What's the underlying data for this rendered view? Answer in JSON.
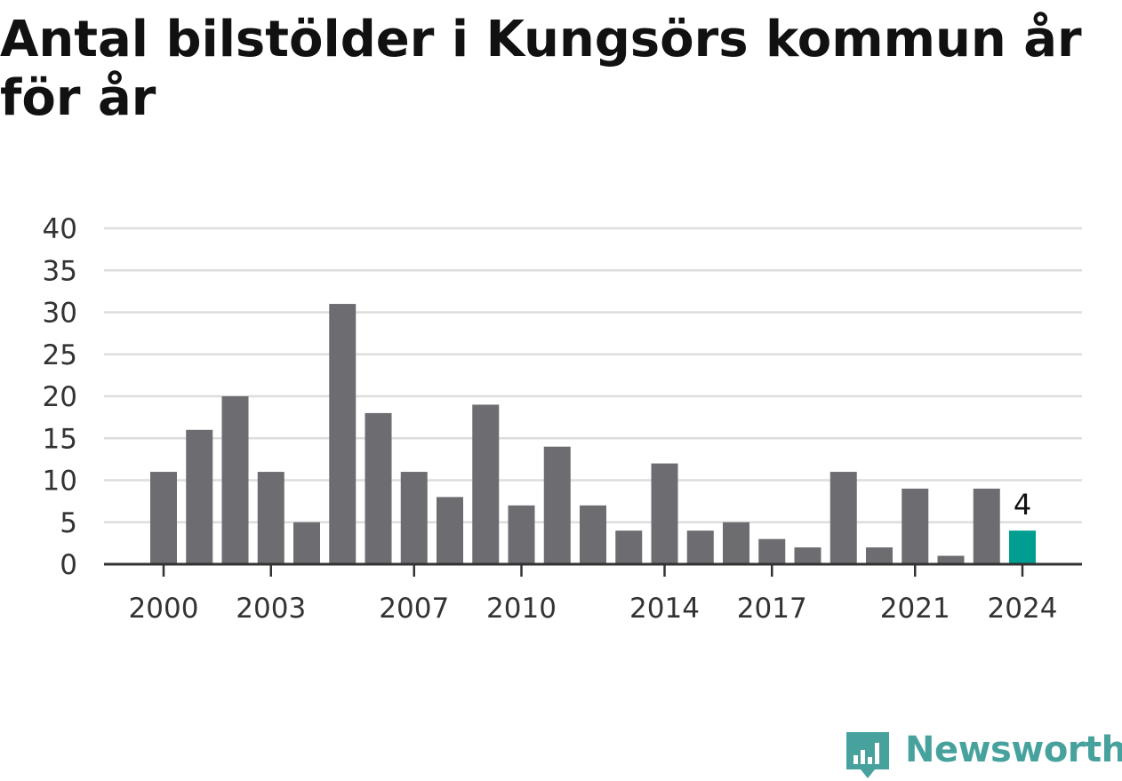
{
  "title": "Antal bilstölder i Kungsörs kommun år för år",
  "brand": {
    "name": "Newsworthy",
    "icon": "bar-chart-speech-bubble-icon",
    "color": "#47a29e"
  },
  "colors": {
    "bar": "#6d6c71",
    "highlight": "#009e91",
    "grid": "#dddddd",
    "axis": "#333333",
    "text": "#333333"
  },
  "chart_data": {
    "type": "bar",
    "categories": [
      "2000",
      "2001",
      "2002",
      "2003",
      "2004",
      "2005",
      "2006",
      "2007",
      "2008",
      "2009",
      "2010",
      "2011",
      "2012",
      "2013",
      "2014",
      "2015",
      "2016",
      "2017",
      "2018",
      "2019",
      "2020",
      "2021",
      "2022",
      "2023",
      "2024"
    ],
    "values": [
      11,
      16,
      20,
      11,
      5,
      31,
      18,
      11,
      8,
      19,
      7,
      14,
      7,
      4,
      12,
      4,
      5,
      3,
      2,
      11,
      2,
      9,
      1,
      9,
      4
    ],
    "x_tick_labels": [
      "2000",
      "2003",
      "2007",
      "2010",
      "2014",
      "2017",
      "2021",
      "2024"
    ],
    "y_ticks": [
      0,
      5,
      10,
      15,
      20,
      25,
      30,
      35,
      40
    ],
    "ylim": [
      0,
      40
    ],
    "highlight": {
      "category": "2024",
      "value": 4,
      "label": "4"
    },
    "title": "Antal bilstölder i Kungsörs kommun år för år",
    "xlabel": "",
    "ylabel": "",
    "grid": true,
    "legend": "none"
  }
}
